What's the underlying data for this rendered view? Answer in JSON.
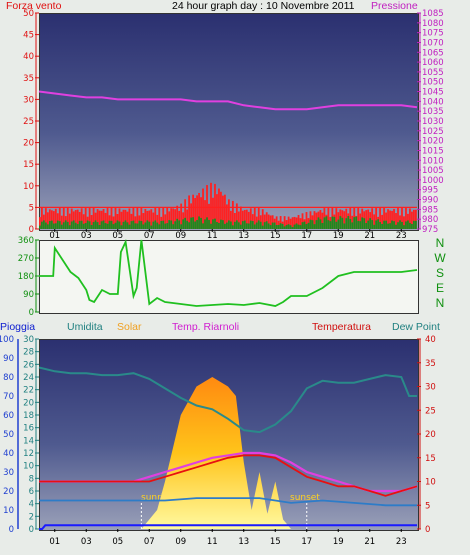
{
  "header": {
    "wind_label": "Forza vento",
    "title": "24 hour graph day : 10 Novembre 2011",
    "pressure_label": "Pressione"
  },
  "direction_labels": [
    "N",
    "W",
    "S",
    "E",
    "N"
  ],
  "lower_labels": {
    "rain": "Pioggia",
    "humidity": "Umidita",
    "solar": "Solar",
    "temp_riarnoli": "Temp. Riarnoli",
    "temperature": "Temperatura",
    "dew_point": "Dew Point",
    "sunrise": "sunrise",
    "sunset": "sunset"
  },
  "colors": {
    "wind": "#ff2020",
    "gust": "#1e8a1e",
    "pressure": "#e040e0",
    "direction": "#20c020",
    "humidity": "#2a8a8a",
    "solar": "#ffd21f",
    "temp_riarnoli": "#e040e0",
    "temperature": "#e81010",
    "dew_point": "#2d7cc8",
    "rain": "#1a1aff"
  },
  "chart_data": [
    {
      "type": "line",
      "title": "24 hour graph day : 10 Novembre 2011",
      "x_ticks": [
        "01",
        "03",
        "05",
        "07",
        "09",
        "11",
        "13",
        "15",
        "17",
        "19",
        "21",
        "23"
      ],
      "xlim": [
        0,
        24
      ],
      "left_axis": {
        "label": "Forza vento",
        "ticks": [
          "0",
          "5",
          "10",
          "15",
          "20",
          "25",
          "30",
          "35",
          "40",
          "45",
          "50"
        ],
        "ylim": [
          0,
          50
        ]
      },
      "right_axis": {
        "label": "Pressione",
        "ticks": [
          "975",
          "980",
          "985",
          "990",
          "995",
          "1000",
          "1005",
          "1010",
          "1015",
          "1020",
          "1025",
          "1030",
          "1035",
          "1040",
          "1045",
          "1050",
          "1055",
          "1060",
          "1065",
          "1070",
          "1075",
          "1080",
          "1085"
        ],
        "ylim": [
          975,
          1085
        ]
      },
      "series": [
        {
          "name": "Pressione",
          "x": [
            0,
            1,
            2,
            3,
            4,
            5,
            6,
            7,
            8,
            9,
            10,
            11,
            12,
            13,
            14,
            15,
            16,
            17,
            18,
            19,
            20,
            21,
            22,
            23,
            24
          ],
          "values": [
            1045,
            1044,
            1043,
            1042,
            1042,
            1041,
            1041,
            1041,
            1041,
            1041,
            1040,
            1040,
            1040,
            1038,
            1037,
            1036,
            1036,
            1036,
            1037,
            1038,
            1038,
            1038,
            1038,
            1038,
            1037
          ]
        },
        {
          "name": "wind",
          "x": [
            0,
            1,
            2,
            3,
            4,
            5,
            6,
            7,
            8,
            9,
            9.5,
            10,
            10.5,
            11,
            11.5,
            12,
            13,
            14,
            15,
            16,
            17,
            18,
            19,
            20,
            21,
            22,
            23,
            24
          ],
          "values": [
            5,
            5,
            5,
            5,
            5,
            5,
            5,
            5,
            5,
            6,
            8,
            9,
            10,
            11,
            10,
            7,
            5,
            5,
            3,
            3,
            4,
            5,
            5,
            5,
            5,
            5,
            5,
            5
          ]
        },
        {
          "name": "gust",
          "x": [
            0,
            2,
            4,
            6,
            8,
            10,
            12,
            14,
            16,
            18,
            20,
            22,
            24
          ],
          "values": [
            2,
            2,
            2,
            2,
            2,
            3,
            2,
            2,
            1,
            3,
            3,
            2,
            2
          ]
        }
      ]
    },
    {
      "type": "line",
      "left_axis": {
        "ticks": [
          "0",
          "90",
          "180",
          "270",
          "360"
        ],
        "ylim": [
          0,
          360
        ]
      },
      "x_ticks": [
        "01",
        "03",
        "05",
        "07",
        "09",
        "11",
        "13",
        "15",
        "17",
        "19",
        "21",
        "23"
      ],
      "xlim": [
        0,
        24
      ],
      "series": [
        {
          "name": "direction",
          "x": [
            0,
            0.9,
            1,
            2,
            2.5,
            3,
            3.2,
            3.5,
            4,
            4.5,
            5,
            5.2,
            5.5,
            6,
            6.2,
            6.5,
            7,
            7.5,
            8,
            9,
            10,
            11,
            12,
            13,
            14,
            15,
            15.5,
            16,
            17,
            18,
            19,
            20,
            21,
            22,
            23,
            24
          ],
          "values": [
            180,
            180,
            320,
            200,
            170,
            110,
            60,
            50,
            110,
            90,
            90,
            300,
            350,
            80,
            120,
            360,
            40,
            70,
            50,
            40,
            30,
            35,
            40,
            35,
            45,
            30,
            50,
            80,
            80,
            120,
            180,
            200,
            200,
            200,
            200,
            210
          ]
        }
      ]
    },
    {
      "type": "line",
      "x_ticks": [
        "01",
        "03",
        "05",
        "07",
        "09",
        "11",
        "13",
        "15",
        "17",
        "19",
        "21",
        "23"
      ],
      "xlim": [
        0,
        24
      ],
      "axes": {
        "rain": {
          "label": "Pioggia",
          "ticks": [
            "0",
            "10",
            "20",
            "30",
            "40",
            "50",
            "60",
            "70",
            "80",
            "90",
            "100"
          ],
          "ylim": [
            0,
            100
          ]
        },
        "humidity": {
          "label": "Umidita",
          "ticks": [
            "0",
            "2",
            "4",
            "6",
            "8",
            "10",
            "12",
            "14",
            "16",
            "18",
            "20",
            "22",
            "24",
            "26",
            "28",
            "30"
          ],
          "ylim": [
            0,
            30
          ]
        },
        "temperature": {
          "label": "Temperatura",
          "ticks": [
            "0",
            "5",
            "10",
            "15",
            "20",
            "25",
            "30",
            "35",
            "40"
          ],
          "ylim": [
            0,
            40
          ]
        }
      },
      "series": [
        {
          "name": "Umidita",
          "x": [
            0,
            1,
            2,
            3,
            4,
            5,
            6,
            7,
            8,
            9,
            10,
            11,
            12,
            13,
            14,
            15,
            16,
            17,
            18,
            19,
            20,
            21,
            22,
            23,
            23.5,
            24
          ],
          "values": [
            85,
            83,
            82,
            82,
            81,
            81,
            82,
            79,
            74,
            69,
            65,
            63,
            58,
            52,
            51,
            55,
            62,
            74,
            78,
            77,
            77,
            79,
            81,
            80,
            70,
            70
          ]
        },
        {
          "name": "Solar",
          "x": [
            0,
            6,
            6.5,
            7,
            7.5,
            8,
            9,
            10,
            11,
            12,
            12.5,
            13,
            13.5,
            14,
            14.5,
            15,
            15.5,
            16,
            17,
            24
          ],
          "values": [
            0,
            0,
            0,
            5,
            10,
            25,
            60,
            75,
            80,
            75,
            70,
            35,
            10,
            30,
            8,
            25,
            5,
            0,
            0,
            0
          ]
        },
        {
          "name": "Temp. Riarnoli",
          "x": [
            0,
            1,
            2,
            3,
            4,
            5,
            6,
            7,
            8,
            9,
            10,
            11,
            12,
            13,
            14,
            15,
            16,
            17,
            18,
            19,
            20,
            21,
            22,
            23,
            24
          ],
          "values": [
            10,
            10,
            10,
            10,
            10,
            10,
            10,
            11,
            12,
            13,
            14,
            15,
            15.5,
            16,
            16,
            15.5,
            14,
            12,
            11,
            10,
            9,
            8,
            8,
            8,
            9
          ]
        },
        {
          "name": "Temperatura",
          "x": [
            0,
            1,
            2,
            3,
            4,
            5,
            6,
            7,
            8,
            9,
            10,
            11,
            12,
            13,
            14,
            15,
            16,
            17,
            18,
            19,
            20,
            21,
            22,
            23,
            24
          ],
          "values": [
            10,
            10,
            10,
            10,
            10,
            10,
            10,
            10,
            11,
            12,
            13,
            14,
            15,
            15.5,
            15.5,
            15,
            13,
            11,
            10,
            9,
            9,
            8,
            7,
            8,
            9
          ]
        },
        {
          "name": "Dew Point",
          "x": [
            0,
            2,
            4,
            6,
            8,
            10,
            12,
            14,
            16,
            18,
            20,
            22,
            24
          ],
          "values": [
            6,
            6,
            6,
            6,
            6,
            6.5,
            6.5,
            6.5,
            5.5,
            6,
            5.5,
            5,
            5
          ]
        },
        {
          "name": "Pioggia",
          "x": [
            0,
            0.2,
            0.4,
            24
          ],
          "values": [
            0,
            0,
            2,
            2
          ]
        }
      ]
    }
  ]
}
